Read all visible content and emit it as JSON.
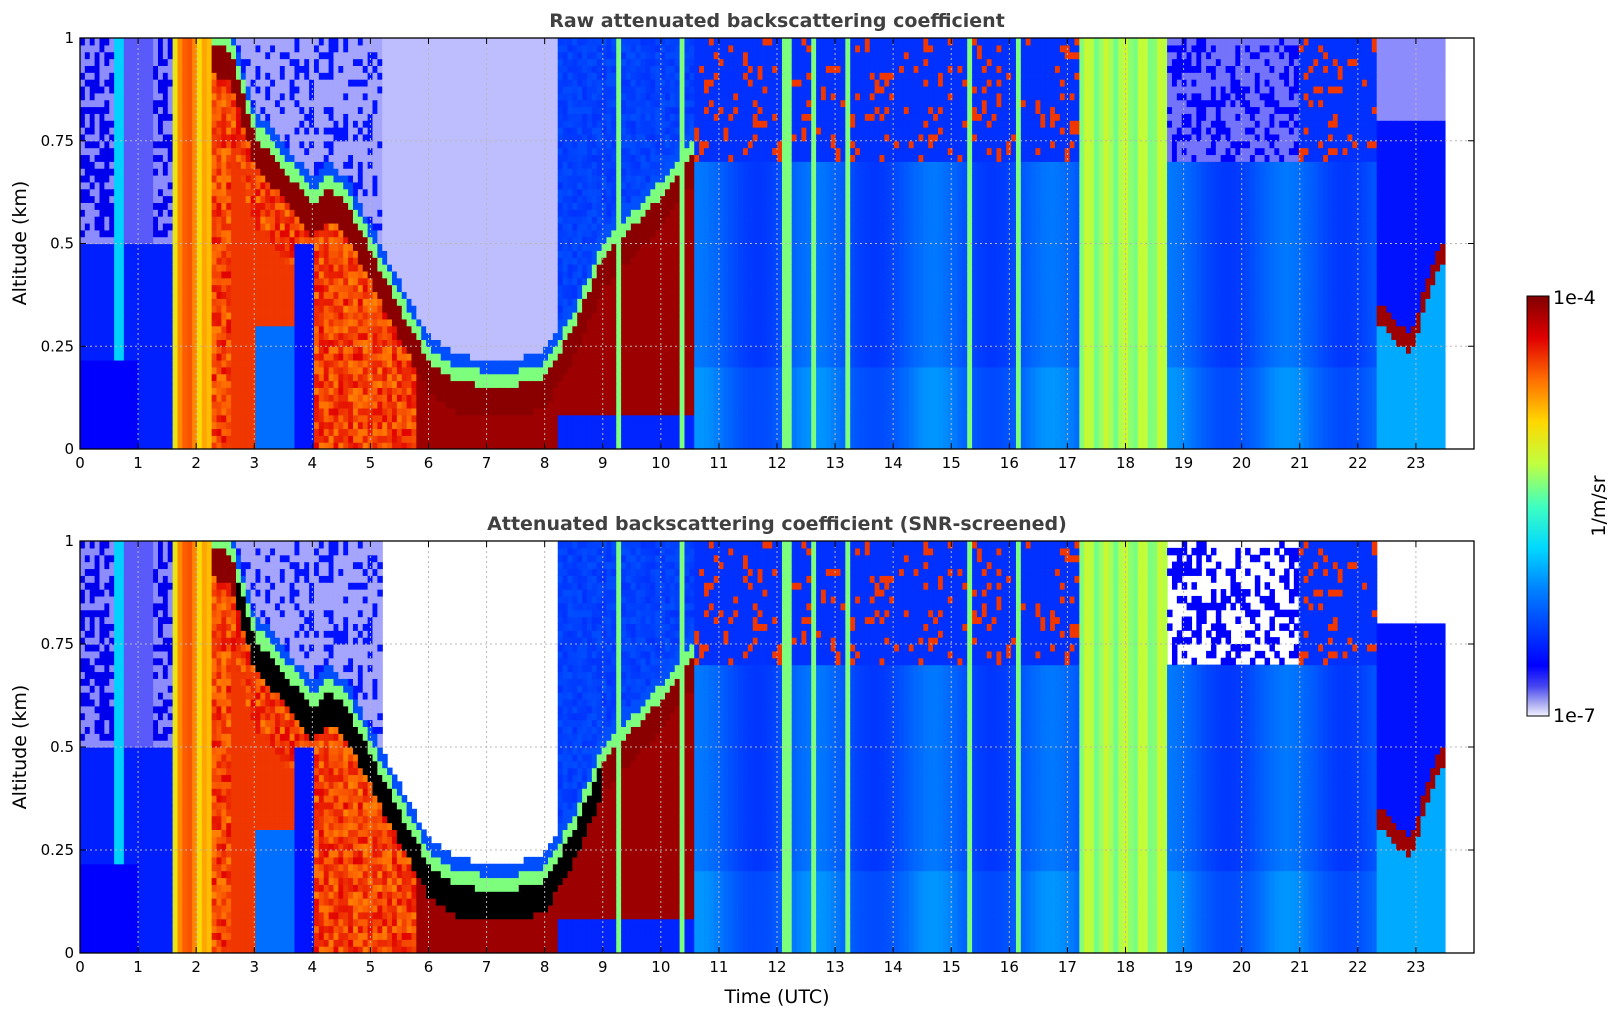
{
  "chart_data": [
    {
      "type": "heatmap",
      "title": "Raw attenuated backscattering coefficient",
      "xlabel": "",
      "ylabel": "Altitude (km)",
      "xlim": [
        0,
        24
      ],
      "ylim": [
        0,
        1
      ],
      "x_ticks": [
        "0",
        "1",
        "2",
        "3",
        "4",
        "5",
        "6",
        "7",
        "8",
        "9",
        "10",
        "11",
        "12",
        "13",
        "14",
        "15",
        "16",
        "17",
        "18",
        "19",
        "20",
        "21",
        "22",
        "23"
      ],
      "y_ticks": [
        "0",
        "0.25",
        "0.5",
        "0.75",
        "1"
      ],
      "grid": true,
      "colorscale": "jet",
      "log_scale": true,
      "vmin": 1e-07,
      "vmax": 0.0001,
      "features": {
        "layer_top_km": [
          [
            0,
            0.5
          ],
          [
            1.5,
            0.5
          ],
          [
            2.0,
            1.0
          ],
          [
            2.6,
            0.95
          ],
          [
            3.0,
            0.75
          ],
          [
            3.5,
            0.67
          ],
          [
            4.0,
            0.58
          ],
          [
            4.3,
            0.62
          ],
          [
            4.6,
            0.58
          ],
          [
            5.0,
            0.47
          ],
          [
            5.5,
            0.33
          ],
          [
            6.0,
            0.2
          ],
          [
            6.5,
            0.15
          ],
          [
            7.0,
            0.14
          ],
          [
            7.5,
            0.14
          ],
          [
            8.0,
            0.16
          ],
          [
            8.5,
            0.28
          ],
          [
            9.0,
            0.45
          ],
          [
            10.0,
            0.6
          ],
          [
            10.5,
            0.7
          ]
        ],
        "bright_bands_hours": [
          [
            1.6,
            2.3
          ],
          [
            17.2,
            18.7
          ]
        ],
        "low_layer_22_23": [
          [
            22.4,
            0.35
          ],
          [
            22.9,
            0.28
          ],
          [
            23.4,
            0.5
          ]
        ],
        "data_end_hour": 23.5
      }
    },
    {
      "type": "heatmap",
      "title": "Attenuated backscattering coefficient (SNR-screened)",
      "xlabel": "Time (UTC)",
      "ylabel": "Altitude (km)",
      "xlim": [
        0,
        24
      ],
      "ylim": [
        0,
        1
      ],
      "x_ticks": [
        "0",
        "1",
        "2",
        "3",
        "4",
        "5",
        "6",
        "7",
        "8",
        "9",
        "10",
        "11",
        "12",
        "13",
        "14",
        "15",
        "16",
        "17",
        "18",
        "19",
        "20",
        "21",
        "22",
        "23"
      ],
      "y_ticks": [
        "0",
        "0.25",
        "0.5",
        "0.75",
        "1"
      ],
      "grid": true,
      "colorscale": "jet",
      "log_scale": true,
      "vmin": 1e-07,
      "vmax": 0.0001,
      "saturated_color": "#000000",
      "features": {
        "data_end_hour": 23.5
      }
    }
  ],
  "colorbar": {
    "max_label": "1e-4",
    "min_label": "1e-7",
    "unit_label": "1/m/sr",
    "colors": [
      "#eeeeff",
      "#b8b8f4",
      "#6464ee",
      "#0000ff",
      "#0060ff",
      "#00c0ff",
      "#40ffc0",
      "#c0ff40",
      "#ffd000",
      "#ff6000",
      "#e00000",
      "#800000"
    ]
  }
}
